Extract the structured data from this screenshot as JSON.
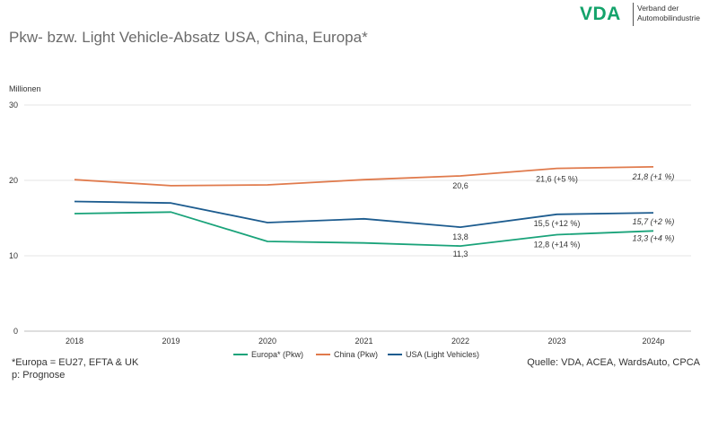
{
  "header": {
    "title": "Pkw- bzw. Light Vehicle-Absatz USA, China, Europa*"
  },
  "logo": {
    "mark": "VDA",
    "line1": "Verband der",
    "line2": "Automobilindustrie"
  },
  "footer": {
    "note1": "*Europa = EU27, EFTA & UK",
    "note2": "p: Prognose",
    "source": "Quelle: VDA, ACEA, WardsAuto, CPCA"
  },
  "chart_data": {
    "type": "line",
    "ylabel": "Millionen",
    "ylim": [
      0,
      30
    ],
    "yticks": [
      0,
      10,
      20,
      30
    ],
    "grid": "horizontal",
    "legend_position": "bottom",
    "categories": [
      "2018",
      "2019",
      "2020",
      "2021",
      "2022",
      "2023",
      "2024p"
    ],
    "series": [
      {
        "name": "Europa* (Pkw)",
        "color": "#1aa37a",
        "values": [
          15.6,
          15.8,
          11.9,
          11.7,
          11.3,
          12.8,
          13.3
        ],
        "labels": [
          null,
          null,
          null,
          null,
          "11,3",
          "12,8 (+14 %)",
          "13,3 (+4 %)"
        ]
      },
      {
        "name": "China (Pkw)",
        "color": "#e07a4c",
        "values": [
          20.1,
          19.3,
          19.4,
          20.1,
          20.6,
          21.6,
          21.8
        ],
        "labels": [
          null,
          null,
          null,
          null,
          "20,6",
          "21,6 (+5 %)",
          "21,8 (+1 %)"
        ]
      },
      {
        "name": "USA (Light Vehicles)",
        "color": "#1d5c8f",
        "values": [
          17.2,
          17.0,
          14.4,
          14.9,
          13.8,
          15.5,
          15.7
        ],
        "labels": [
          null,
          null,
          null,
          null,
          "13,8",
          "15,5 (+12 %)",
          "15,7 (+2 %)"
        ]
      }
    ]
  }
}
